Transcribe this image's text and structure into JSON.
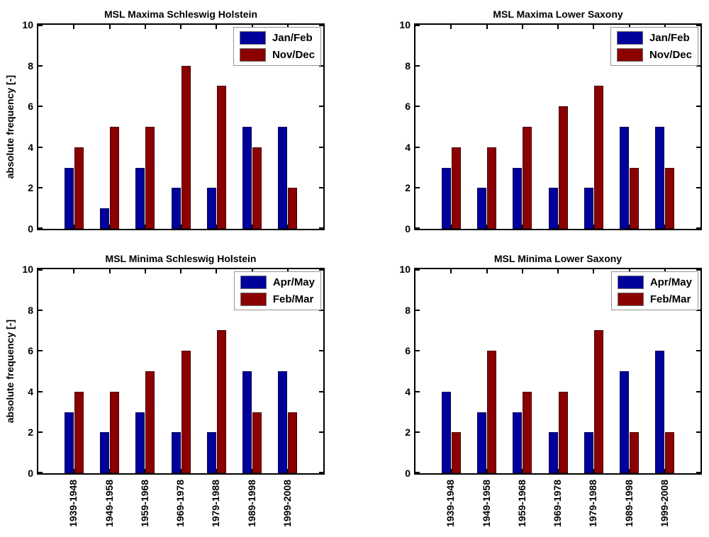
{
  "figure": {
    "ylabel": "absolute frequency [-]",
    "background": "#ffffff",
    "axis_color": "#000000",
    "series_colors": {
      "first": "#00009B",
      "second": "#8B0000"
    }
  },
  "chart_data": [
    {
      "type": "bar",
      "title": "MSL Maxima Schleswig Holstein",
      "categories": [
        "1939-1948",
        "1949-1958",
        "1959-1968",
        "1969-1978",
        "1979-1988",
        "1989-1998",
        "1999-2008"
      ],
      "series": [
        {
          "name": "Jan/Feb",
          "color": "#00009B",
          "values": [
            3,
            1,
            3,
            2,
            2,
            5,
            5
          ]
        },
        {
          "name": "Nov/Dec",
          "color": "#8B0000",
          "values": [
            4,
            5,
            5,
            8,
            7,
            4,
            2
          ]
        }
      ],
      "ylabel": "absolute frequency [-]",
      "ylim": [
        0,
        10
      ],
      "yticks": [
        0,
        2,
        4,
        6,
        8,
        10
      ],
      "grid": false,
      "legend_position": "top-right"
    },
    {
      "type": "bar",
      "title": "MSL Maxima Lower Saxony",
      "categories": [
        "1939-1948",
        "1949-1958",
        "1959-1968",
        "1969-1978",
        "1979-1988",
        "1989-1998",
        "1999-2008"
      ],
      "series": [
        {
          "name": "Jan/Feb",
          "color": "#00009B",
          "values": [
            3,
            2,
            3,
            2,
            2,
            5,
            5
          ]
        },
        {
          "name": "Nov/Dec",
          "color": "#8B0000",
          "values": [
            4,
            4,
            5,
            6,
            7,
            3,
            3
          ]
        }
      ],
      "ylabel": "",
      "ylim": [
        0,
        10
      ],
      "yticks": [
        0,
        2,
        4,
        6,
        8,
        10
      ],
      "grid": false,
      "legend_position": "top-right"
    },
    {
      "type": "bar",
      "title": "MSL Minima Schleswig Holstein",
      "categories": [
        "1939-1948",
        "1949-1958",
        "1959-1968",
        "1969-1978",
        "1979-1988",
        "1989-1998",
        "1999-2008"
      ],
      "series": [
        {
          "name": "Apr/May",
          "color": "#00009B",
          "values": [
            3,
            2,
            3,
            2,
            2,
            5,
            5
          ]
        },
        {
          "name": "Feb/Mar",
          "color": "#8B0000",
          "values": [
            4,
            4,
            5,
            6,
            7,
            3,
            3
          ]
        }
      ],
      "ylabel": "absolute frequency [-]",
      "ylim": [
        0,
        10
      ],
      "yticks": [
        0,
        2,
        4,
        6,
        8,
        10
      ],
      "grid": false,
      "legend_position": "top-right"
    },
    {
      "type": "bar",
      "title": "MSL Minima Lower Saxony",
      "categories": [
        "1939-1948",
        "1949-1958",
        "1959-1968",
        "1969-1978",
        "1979-1988",
        "1989-1998",
        "1999-2008"
      ],
      "series": [
        {
          "name": "Apr/May",
          "color": "#00009B",
          "values": [
            4,
            3,
            3,
            2,
            2,
            5,
            6
          ]
        },
        {
          "name": "Feb/Mar",
          "color": "#8B0000",
          "values": [
            2,
            6,
            4,
            4,
            7,
            2,
            2
          ]
        }
      ],
      "ylabel": "",
      "ylim": [
        0,
        10
      ],
      "yticks": [
        0,
        2,
        4,
        6,
        8,
        10
      ],
      "grid": false,
      "legend_position": "top-right"
    }
  ]
}
